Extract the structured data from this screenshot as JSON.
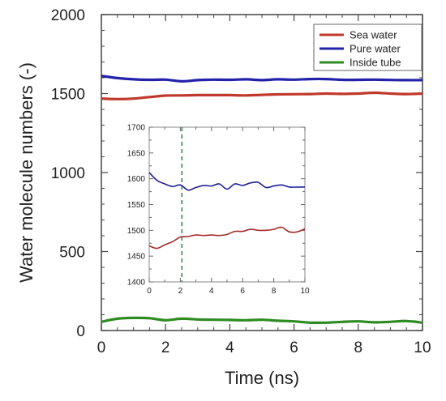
{
  "chart_data": [
    {
      "type": "line",
      "xlabel": "Time (ns)",
      "ylabel": "Water molecule numbers (-)",
      "xlim": [
        0,
        10
      ],
      "ylim": [
        0,
        2000
      ],
      "xticks": [
        0,
        2,
        4,
        6,
        8,
        10
      ],
      "xtick_labels": [
        "0",
        "2",
        "4",
        "6",
        "8",
        "10"
      ],
      "yticks": [
        0,
        500,
        1000,
        1500,
        2000
      ],
      "ytick_labels": [
        "0",
        "500",
        "1000",
        "1500",
        "2000"
      ],
      "legend": "top-right",
      "grid": false,
      "series": [
        {
          "name": "Sea water",
          "color": "#c0392b",
          "x": [
            0,
            0.5,
            1,
            1.5,
            2,
            2.5,
            3,
            3.5,
            4,
            4.5,
            5,
            5.5,
            6,
            6.5,
            7,
            7.5,
            8,
            8.5,
            9,
            9.5,
            10
          ],
          "y": [
            1468,
            1465,
            1468,
            1478,
            1487,
            1488,
            1490,
            1490,
            1490,
            1488,
            1492,
            1495,
            1496,
            1497,
            1500,
            1498,
            1500,
            1505,
            1500,
            1497,
            1500
          ]
        },
        {
          "name": "Pure water",
          "color": "#2222aa",
          "x": [
            0,
            0.5,
            1,
            1.5,
            2,
            2.5,
            3,
            3.5,
            4,
            4.5,
            5,
            5.5,
            6,
            6.5,
            7,
            7.5,
            8,
            8.5,
            9,
            9.5,
            10
          ],
          "y": [
            1612,
            1598,
            1590,
            1587,
            1588,
            1578,
            1585,
            1588,
            1587,
            1590,
            1585,
            1590,
            1588,
            1592,
            1592,
            1587,
            1587,
            1588,
            1586,
            1585,
            1585
          ]
        },
        {
          "name": "Inside tube",
          "color": "#2e8b22",
          "x": [
            0,
            0.5,
            1,
            1.5,
            2,
            2.5,
            3,
            3.5,
            4,
            4.5,
            5,
            5.5,
            6,
            6.5,
            7,
            7.5,
            8,
            8.5,
            9,
            9.5,
            10
          ],
          "y": [
            55,
            75,
            80,
            78,
            65,
            75,
            70,
            68,
            67,
            65,
            68,
            62,
            58,
            50,
            50,
            55,
            58,
            52,
            55,
            60,
            50
          ]
        }
      ]
    },
    {
      "type": "line",
      "inset": true,
      "xlim": [
        0,
        10
      ],
      "ylim": [
        1400,
        1700
      ],
      "xticks": [
        0,
        2,
        4,
        6,
        8,
        10
      ],
      "xtick_labels": [
        "0",
        "2",
        "4",
        "6",
        "8",
        "10"
      ],
      "yticks": [
        1400,
        1450,
        1500,
        1550,
        1600,
        1650,
        1700
      ],
      "ytick_labels": [
        "1400",
        "1450",
        "1500",
        "1550",
        "1600",
        "1650",
        "1700"
      ],
      "vline": {
        "x": 2.1,
        "color": "#2e8b57",
        "style": "dashed"
      },
      "series": [
        {
          "color": "#a52a2a",
          "x": [
            0,
            0.5,
            1,
            1.5,
            2,
            2.5,
            3,
            3.5,
            4,
            4.5,
            5,
            5.5,
            6,
            6.5,
            7,
            7.5,
            8,
            8.5,
            9,
            9.5,
            10
          ],
          "y": [
            1470,
            1465,
            1472,
            1478,
            1487,
            1488,
            1491,
            1490,
            1491,
            1490,
            1492,
            1498,
            1498,
            1502,
            1500,
            1500,
            1502,
            1506,
            1497,
            1497,
            1503
          ]
        },
        {
          "color": "#1f1f99",
          "x": [
            0,
            0.5,
            1,
            1.5,
            2,
            2.5,
            3,
            3.5,
            4,
            4.5,
            5,
            5.5,
            6,
            6.5,
            7,
            7.5,
            8,
            8.5,
            9,
            9.5,
            10
          ],
          "y": [
            1612,
            1597,
            1590,
            1585,
            1588,
            1578,
            1583,
            1587,
            1586,
            1590,
            1580,
            1590,
            1587,
            1592,
            1593,
            1583,
            1586,
            1588,
            1584,
            1584,
            1584
          ]
        }
      ]
    }
  ]
}
